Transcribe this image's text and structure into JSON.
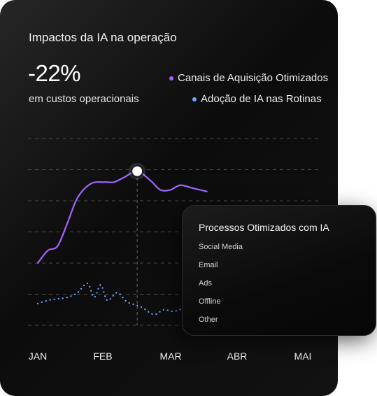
{
  "card": {
    "title": "Impactos da IA na operação",
    "metric_value": "-22%",
    "metric_caption": "em custos operacionais"
  },
  "legend": {
    "series1": "Canais de Aquisição Otimizados",
    "series2": "Adoção de IA nas Rotinas"
  },
  "popup": {
    "title": "Processos Otimizados com IA",
    "items": [
      "Social Media",
      "Email",
      "Ads",
      "Offline",
      "Other"
    ]
  },
  "chart_data": {
    "type": "line",
    "categories": [
      "JAN",
      "FEB",
      "MAR",
      "ABR",
      "MAI"
    ],
    "ylim": [
      0,
      6
    ],
    "grid": true,
    "legend_position": "top-right",
    "highlight": {
      "x": 1.5,
      "series": "Canais de Aquisição Otimizados"
    },
    "series": [
      {
        "name": "Canais de Aquisição Otimizados",
        "color": "#a066ff",
        "style": "solid",
        "points": [
          [
            0.0,
            2.0
          ],
          [
            0.15,
            2.4
          ],
          [
            0.3,
            2.55
          ],
          [
            0.45,
            3.3
          ],
          [
            0.6,
            4.1
          ],
          [
            0.8,
            4.55
          ],
          [
            1.0,
            4.6
          ],
          [
            1.15,
            4.6
          ],
          [
            1.3,
            4.75
          ],
          [
            1.5,
            4.95
          ],
          [
            1.7,
            4.65
          ],
          [
            1.85,
            4.35
          ],
          [
            2.0,
            4.35
          ],
          [
            2.15,
            4.5
          ],
          [
            2.35,
            4.4
          ],
          [
            2.55,
            4.3
          ]
        ]
      },
      {
        "name": "Adoção de IA nas Rotinas",
        "color": "#6fa8ff",
        "style": "dotted",
        "points": [
          [
            0.0,
            0.7
          ],
          [
            0.15,
            0.8
          ],
          [
            0.3,
            0.85
          ],
          [
            0.45,
            0.9
          ],
          [
            0.6,
            1.05
          ],
          [
            0.75,
            1.35
          ],
          [
            0.85,
            0.9
          ],
          [
            0.95,
            1.3
          ],
          [
            1.05,
            0.8
          ],
          [
            1.2,
            1.05
          ],
          [
            1.35,
            0.75
          ],
          [
            1.55,
            0.6
          ],
          [
            1.75,
            0.35
          ],
          [
            1.9,
            0.5
          ],
          [
            2.05,
            0.45
          ],
          [
            2.2,
            0.55
          ],
          [
            2.4,
            0.7
          ],
          [
            2.55,
            0.8
          ]
        ]
      }
    ]
  }
}
